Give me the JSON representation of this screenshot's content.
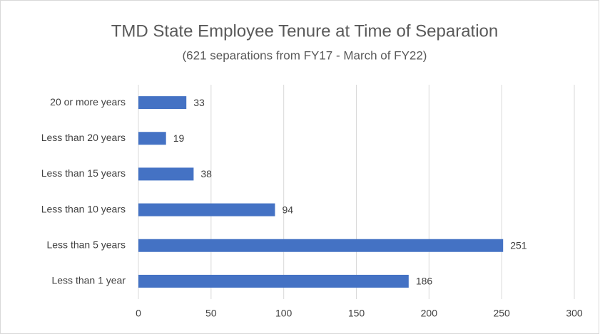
{
  "chart_data": {
    "type": "bar",
    "orientation": "horizontal",
    "title": "TMD State Employee Tenure at Time of Separation",
    "subtitle": "(621 separations from FY17 - March of FY22)",
    "categories": [
      "20 or more years",
      "Less than 20 years",
      "Less than 15 years",
      "Less than 10 years",
      "Less than 5 years",
      "Less than 1 year"
    ],
    "values": [
      33,
      19,
      38,
      94,
      251,
      186
    ],
    "color": "#4472c4",
    "xlim": [
      0,
      300
    ],
    "xticks": [
      0,
      50,
      100,
      150,
      200,
      250,
      300
    ],
    "grid": true
  }
}
